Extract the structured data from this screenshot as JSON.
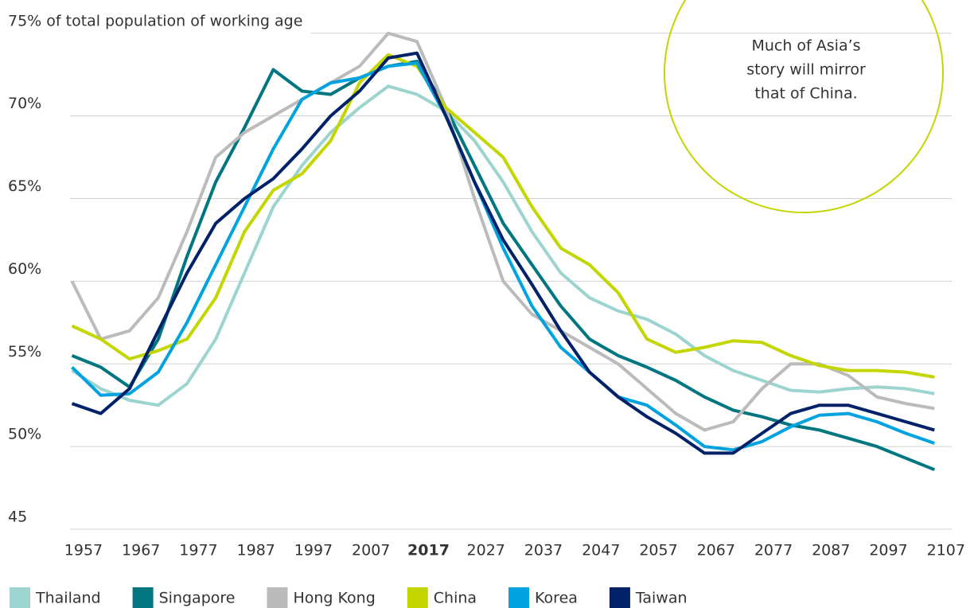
{
  "chart_data": {
    "type": "line",
    "x": [
      1955,
      1960,
      1965,
      1970,
      1975,
      1980,
      1985,
      1990,
      1995,
      2000,
      2005,
      2010,
      2015,
      2020,
      2025,
      2030,
      2035,
      2040,
      2045,
      2050,
      2055,
      2060,
      2065,
      2070,
      2075,
      2080,
      2085,
      2090,
      2095,
      2100,
      2105
    ],
    "xlim": [
      1955,
      2108
    ],
    "xticks": [
      1957,
      1967,
      1977,
      1987,
      1997,
      2007,
      2017,
      2027,
      2037,
      2047,
      2057,
      2067,
      2077,
      2087,
      2097,
      2107
    ],
    "bold_xticks": [
      2017
    ],
    "ylim": [
      45,
      76
    ],
    "yticks": [
      45,
      {
        "value": 50,
        "label": "50%"
      },
      {
        "value": 55,
        "label": "55%"
      },
      {
        "value": 60,
        "label": "60%"
      },
      {
        "value": 65,
        "label": "65%"
      },
      {
        "value": 70,
        "label": "70%"
      },
      {
        "value": 75,
        "label": "75% of total population of working age"
      }
    ],
    "grid": true,
    "annotation": [
      "Much of Asia’s",
      "story will mirror",
      "that of China."
    ],
    "annotation_color": "#c4d600",
    "series": [
      {
        "name": "Thailand",
        "color": "#9dd4cf",
        "values": [
          54.6,
          53.5,
          52.8,
          52.5,
          53.8,
          56.5,
          60.5,
          64.5,
          67,
          69,
          70.5,
          71.8,
          71.3,
          70.3,
          68.5,
          66,
          63,
          60.5,
          59,
          58.2,
          57.7,
          56.8,
          55.5,
          54.6,
          54,
          53.4,
          53.3,
          53.5,
          53.6,
          53.5,
          53.2
        ]
      },
      {
        "name": "Singapore",
        "color": "#007680",
        "values": [
          55.5,
          54.8,
          53.6,
          56.5,
          61.5,
          66,
          69.3,
          72.8,
          71.5,
          71.3,
          72.3,
          73,
          73.3,
          70.5,
          67,
          63.5,
          61,
          58.5,
          56.5,
          55.5,
          54.8,
          54,
          53,
          52.2,
          51.8,
          51.3,
          51,
          50.5,
          50,
          49.3,
          48.6
        ]
      },
      {
        "name": "Hong Kong",
        "color": "#bbbbbb",
        "values": [
          60,
          56.5,
          57,
          59,
          63,
          67.5,
          69,
          70,
          71,
          72,
          73,
          75,
          74.5,
          70.5,
          65,
          60,
          58,
          57,
          56,
          55,
          53.5,
          52,
          51,
          51.5,
          53.5,
          55,
          55,
          54.3,
          53,
          52.6,
          52.3
        ]
      },
      {
        "name": "China",
        "color": "#c4d600",
        "values": [
          57.3,
          56.5,
          55.3,
          55.8,
          56.5,
          59,
          63,
          65.5,
          66.5,
          68.5,
          72,
          73.7,
          73,
          70.5,
          69,
          67.5,
          64.5,
          62,
          61,
          59.3,
          56.5,
          55.7,
          56,
          56.4,
          56.3,
          55.5,
          54.9,
          54.6,
          54.6,
          54.5,
          54.2
        ]
      },
      {
        "name": "Korea",
        "color": "#00a3e0",
        "values": [
          54.8,
          53.1,
          53.2,
          54.5,
          57.5,
          61,
          64.5,
          68,
          71,
          72,
          72.3,
          73,
          73.2,
          70,
          66,
          62,
          58.5,
          56,
          54.5,
          53,
          52.5,
          51.3,
          50,
          49.8,
          50.3,
          51.2,
          51.9,
          52,
          51.5,
          50.8,
          50.2
        ]
      },
      {
        "name": "Taiwan",
        "color": "#012169",
        "values": [
          52.6,
          52,
          53.5,
          57,
          60.5,
          63.5,
          65,
          66.2,
          68,
          70,
          71.5,
          73.5,
          73.8,
          70,
          66,
          62.5,
          59.8,
          57,
          54.5,
          53,
          51.8,
          50.8,
          49.6,
          49.6,
          50.8,
          52,
          52.5,
          52.5,
          52,
          51.5,
          51
        ]
      }
    ]
  }
}
